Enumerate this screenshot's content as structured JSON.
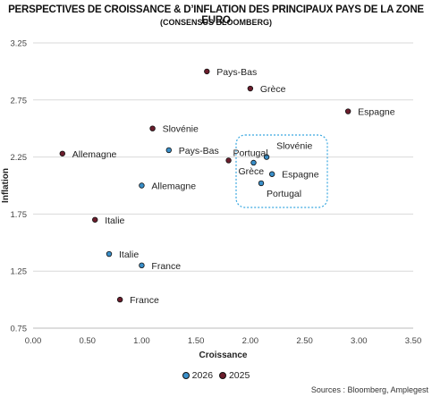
{
  "chart_data": {
    "type": "scatter",
    "title": "PERSPECTIVES DE CROISSANCE & D’INFLATION DES PRINCIPAUX PAYS DE LA ZONE EURO",
    "subtitle": "(CONSENSUS BLOOMBERG)",
    "xlabel": "Croissance",
    "ylabel": "Inflation",
    "xlim": [
      0,
      3.5
    ],
    "ylim": [
      0.75,
      3.25
    ],
    "xticks": [
      "0.00",
      "0.50",
      "1.00",
      "1.50",
      "2.00",
      "2.50",
      "3.00",
      "3.50"
    ],
    "yticks": [
      "0.75",
      "1.25",
      "1.75",
      "2.25",
      "2.75",
      "3.25"
    ],
    "legend_position": "bottom",
    "series": [
      {
        "name": "2026",
        "color": "#3a8fc9",
        "points": [
          {
            "label": "Pays-Bas",
            "x": 1.25,
            "y": 2.31
          },
          {
            "label": "Allemagne",
            "x": 1.0,
            "y": 2.0
          },
          {
            "label": "Italie",
            "x": 0.7,
            "y": 1.4
          },
          {
            "label": "France",
            "x": 1.0,
            "y": 1.3
          },
          {
            "label": "Slovénie",
            "x": 2.15,
            "y": 2.25
          },
          {
            "label": "Grèce",
            "x": 2.03,
            "y": 2.2
          },
          {
            "label": "Espagne",
            "x": 2.2,
            "y": 2.1
          },
          {
            "label": "Portugal",
            "x": 2.1,
            "y": 2.02
          }
        ]
      },
      {
        "name": "2025",
        "color": "#6b1d2c",
        "points": [
          {
            "label": "Pays-Bas",
            "x": 1.6,
            "y": 3.0
          },
          {
            "label": "Grèce",
            "x": 2.0,
            "y": 2.85
          },
          {
            "label": "Espagne",
            "x": 2.9,
            "y": 2.65
          },
          {
            "label": "Slovénie",
            "x": 1.1,
            "y": 2.5
          },
          {
            "label": "Allemagne",
            "x": 0.27,
            "y": 2.28
          },
          {
            "label": "Portugal",
            "x": 1.8,
            "y": 2.22
          },
          {
            "label": "Italie",
            "x": 0.57,
            "y": 1.7
          },
          {
            "label": "France",
            "x": 0.8,
            "y": 1.0
          }
        ]
      }
    ]
  },
  "source": "Sources : Bloomberg, Amplegest"
}
